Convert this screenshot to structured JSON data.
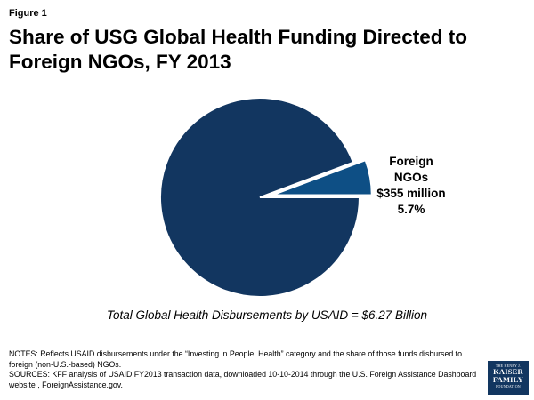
{
  "figure_label": "Figure 1",
  "title": "Share of USG Global Health Funding Directed to Foreign NGOs, FY 2013",
  "chart_data": {
    "type": "pie",
    "title": "Share of USG Global Health Funding Directed to Foreign NGOs, FY 2013",
    "slices": [
      {
        "label": "Foreign NGOs",
        "amount": "$355 million",
        "percent": 5.7,
        "percent_label": "5.7%",
        "exploded": true
      },
      {
        "label": "",
        "percent": 94.3
      }
    ],
    "colors": {
      "main": "#123660",
      "highlight": "#0e4f85"
    }
  },
  "total_caption": "Total Global Health Disbursements by USAID = $6.27 Billion",
  "notes": "NOTES: Reflects USAID disbursements under the “Investing in People: Health” category and the share of those funds disbursed to foreign (non-U.S.-based) NGOs.",
  "sources": "SOURCES: KFF analysis of USAID FY2013 transaction data, downloaded 10-10-2014 through the U.S. Foreign Assistance Dashboard website , ForeignAssistance.gov.",
  "logo": {
    "line1": "THE HENRY J.",
    "line2": "KAISER",
    "line3": "FAMILY",
    "line4": "FOUNDATION"
  }
}
